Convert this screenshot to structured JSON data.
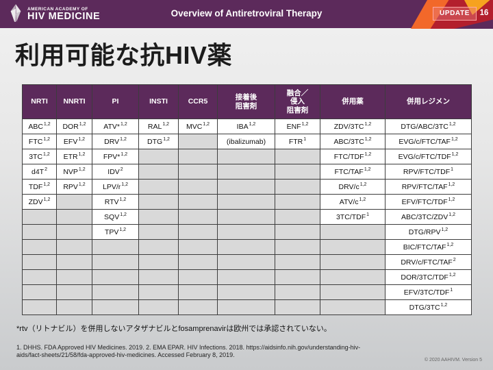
{
  "header": {
    "logo_line1": "AMERICAN ACADEMY OF",
    "logo_line2": "HIV MEDICINE",
    "title": "Overview of Antiretroviral Therapy",
    "update_label": "UPDATE",
    "page_number": "16"
  },
  "slide": {
    "title": "利用可能な抗HIV薬",
    "footnote": "*rtv（リトナビル）を併用しないアタザナビルとfosamprenavirは欧州では承認されていない。",
    "citation_line1": "1. DHHS. FDA Approved HIV Medicines. 2019. 2. EMA EPAR. HIV Infections. 2018. https://aidsinfo.nih.gov/understanding-hiv-",
    "citation_line2": "aids/fact-sheets/21/58/fda-approved-hiv-medicines. Accessed February 8, 2019.",
    "copyright": "© 2020 AAHIVM. Version 5"
  },
  "colors": {
    "banner_purple": "#5c2a5b",
    "table_header_purple": "#5c2a5b",
    "empty_cell_gray": "#d9d9d9",
    "accent_orange": "#f2682a",
    "accent_yellow": "#f6a21f",
    "accent_red": "#b31f2d"
  },
  "table": {
    "columns": [
      "NRTI",
      "NNRTI",
      "PI",
      "INSTI",
      "CCR5",
      "接着後\n阻害剤",
      "融合／\n侵入\n阻害剤",
      "併用薬",
      "併用レジメン"
    ],
    "rows": [
      [
        {
          "t": "ABC",
          "s": "1,2"
        },
        {
          "t": "DOR",
          "s": "1,2"
        },
        {
          "t": "ATV*",
          "s": "1,2"
        },
        {
          "t": "RAL",
          "s": "1,2"
        },
        {
          "t": "MVC",
          "s": "1,2"
        },
        {
          "t": "IBA",
          "s": "1,2"
        },
        {
          "t": "ENF",
          "s": "1,2"
        },
        {
          "t": "ZDV/3TC",
          "s": "1,2"
        },
        {
          "t": "DTG/ABC/3TC",
          "s": "1,2"
        }
      ],
      [
        {
          "t": "FTC",
          "s": "1,2"
        },
        {
          "t": "EFV",
          "s": "1,2"
        },
        {
          "t": "DRV",
          "s": "1,2"
        },
        {
          "t": "DTG",
          "s": "1,2"
        },
        null,
        {
          "t": "(ibalizumab)",
          "s": ""
        },
        {
          "t": "FTR",
          "s": "1"
        },
        {
          "t": "ABC/3TC",
          "s": "1,2"
        },
        {
          "t": "EVG/c/FTC/TAF",
          "s": "1,2"
        }
      ],
      [
        {
          "t": "3TC",
          "s": "1,2"
        },
        {
          "t": "ETR",
          "s": "1,2"
        },
        {
          "t": "FPV*",
          "s": "1,2"
        },
        null,
        null,
        null,
        null,
        {
          "t": "FTC/TDF",
          "s": "1,2"
        },
        {
          "t": "EVG/c/FTC/TDF",
          "s": "1,2"
        }
      ],
      [
        {
          "t": "d4T",
          "s": "2"
        },
        {
          "t": "NVP",
          "s": "1,2"
        },
        {
          "t": "IDV",
          "s": "2"
        },
        null,
        null,
        null,
        null,
        {
          "t": "FTC/TAF",
          "s": "1,2"
        },
        {
          "t": "RPV/FTC/TDF",
          "s": "1"
        }
      ],
      [
        {
          "t": "TDF",
          "s": "1,2"
        },
        {
          "t": "RPV",
          "s": "1,2"
        },
        {
          "t": "LPV/r",
          "s": "1,2"
        },
        null,
        null,
        null,
        null,
        {
          "t": "DRV/c",
          "s": "1,2"
        },
        {
          "t": "RPV/FTC/TAF",
          "s": "1,2"
        }
      ],
      [
        {
          "t": "ZDV",
          "s": "1,2"
        },
        null,
        {
          "t": "RTV",
          "s": "1,2"
        },
        null,
        null,
        null,
        null,
        {
          "t": "ATV/c",
          "s": "1,2"
        },
        {
          "t": "EFV/FTC/TDF",
          "s": "1,2"
        }
      ],
      [
        null,
        null,
        {
          "t": "SQV",
          "s": "1,2"
        },
        null,
        null,
        null,
        null,
        {
          "t": "3TC/TDF",
          "s": "1"
        },
        {
          "t": "ABC/3TC/ZDV",
          "s": "1,2"
        }
      ],
      [
        null,
        null,
        {
          "t": "TPV",
          "s": "1,2"
        },
        null,
        null,
        null,
        null,
        null,
        {
          "t": "DTG/RPV",
          "s": "1,2"
        }
      ],
      [
        null,
        null,
        null,
        null,
        null,
        null,
        null,
        null,
        {
          "t": "BIC/FTC/TAF",
          "s": "1,2"
        }
      ],
      [
        null,
        null,
        null,
        null,
        null,
        null,
        null,
        null,
        {
          "t": "DRV/c/FTC/TAF",
          "s": "2"
        }
      ],
      [
        null,
        null,
        null,
        null,
        null,
        null,
        null,
        null,
        {
          "t": "DOR/3TC/TDF",
          "s": "1,2"
        }
      ],
      [
        null,
        null,
        null,
        null,
        null,
        null,
        null,
        null,
        {
          "t": "EFV/3TC/TDF",
          "s": "1"
        }
      ],
      [
        null,
        null,
        null,
        null,
        null,
        null,
        null,
        null,
        {
          "t": "DTG/3TC",
          "s": "1,2"
        }
      ]
    ]
  }
}
